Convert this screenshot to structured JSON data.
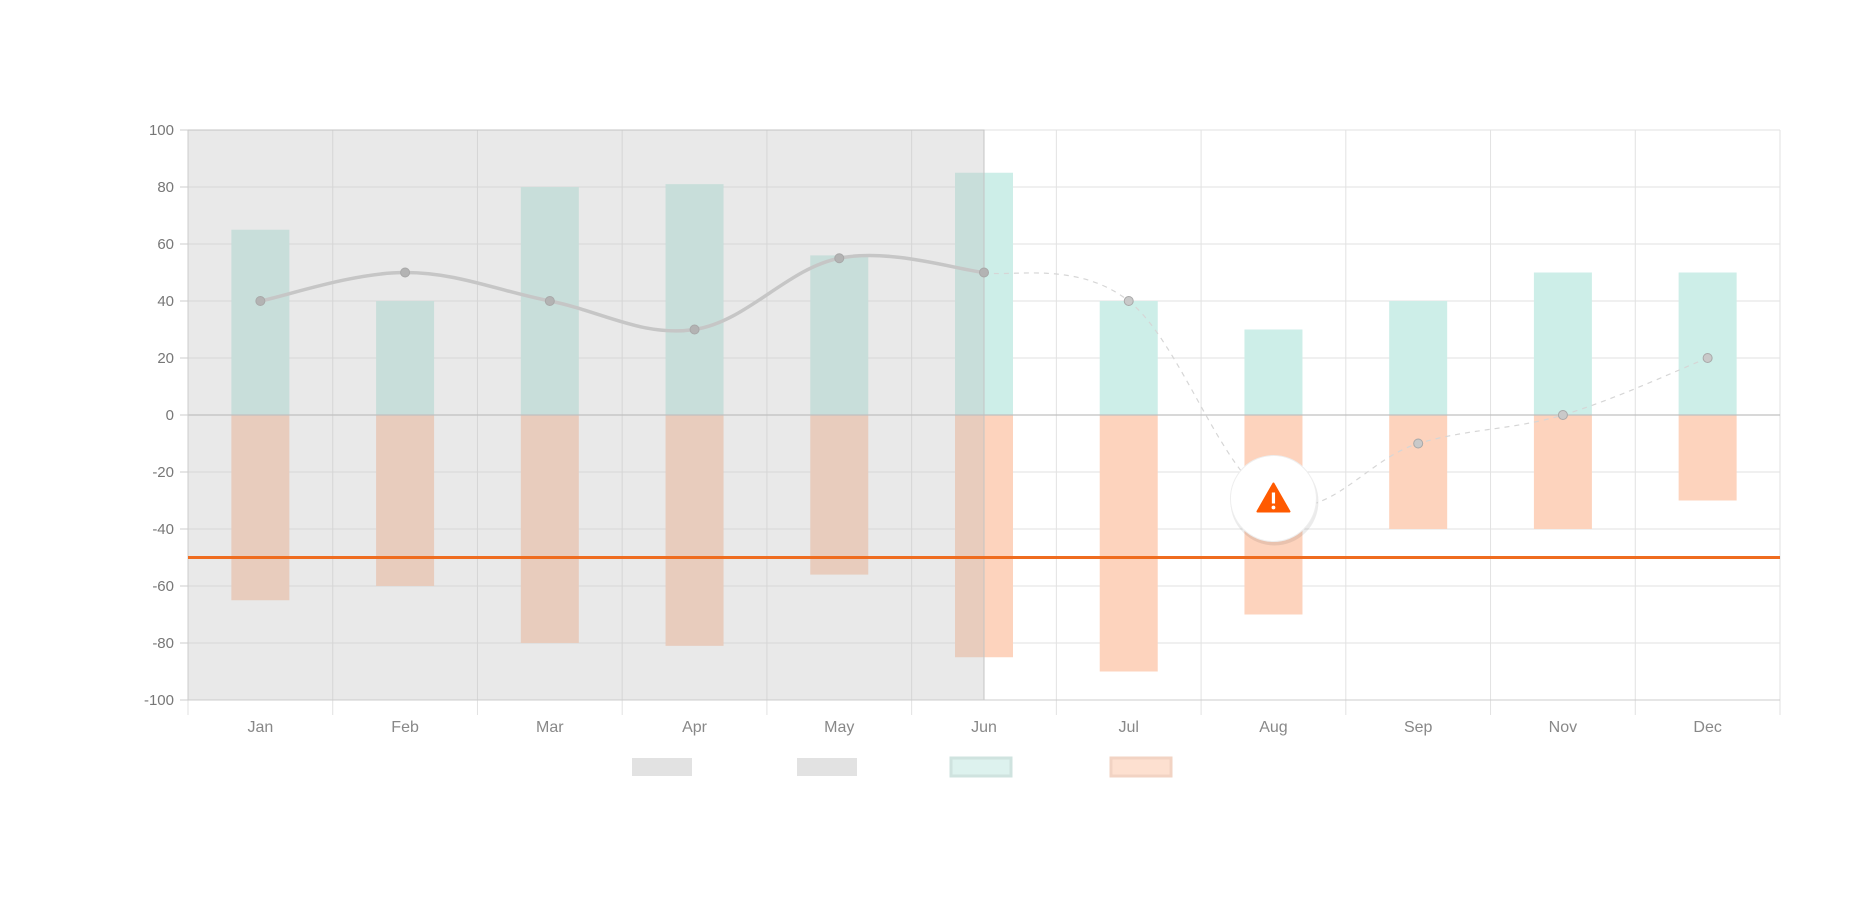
{
  "chart_data": {
    "type": "bar",
    "categories": [
      "Jan",
      "Feb",
      "Mar",
      "Apr",
      "May",
      "Jun",
      "Jul",
      "Aug",
      "Sep",
      "Nov",
      "Dec"
    ],
    "ylim": [
      -100,
      100
    ],
    "yticks": [
      100,
      80,
      60,
      40,
      20,
      0,
      -20,
      -40,
      -60,
      -80,
      -100
    ],
    "grid": true,
    "shaded_region": {
      "from": "Jan",
      "to": "Jun",
      "color": "#e2e2e2"
    },
    "series": [
      {
        "type": "bar",
        "values": [
          65,
          40,
          80,
          81,
          56,
          85,
          40,
          30,
          40,
          50,
          50
        ],
        "color": "#cdeee8"
      },
      {
        "type": "bar",
        "values": [
          -65,
          -60,
          -80,
          -81,
          -56,
          -85,
          -90,
          -70,
          -40,
          -40,
          -30
        ],
        "color": "#fdd3bd"
      },
      {
        "type": "line",
        "values": [
          40,
          50,
          40,
          30,
          55,
          50,
          40,
          -30,
          -10,
          0,
          20
        ],
        "color": "#c8c8c8",
        "solid_until": "Jun"
      }
    ],
    "reference_line": {
      "value": -50,
      "color": "#ef6c1f"
    },
    "annotation": {
      "category": "Aug",
      "value": -30,
      "icon": "warning-icon",
      "color": "#ff5a00"
    },
    "legend": {
      "position": "bottom",
      "swatch_colors": [
        "#e2e2e2",
        "#e2e2e2",
        "#ddf2ee",
        "#fde0d0"
      ]
    }
  }
}
